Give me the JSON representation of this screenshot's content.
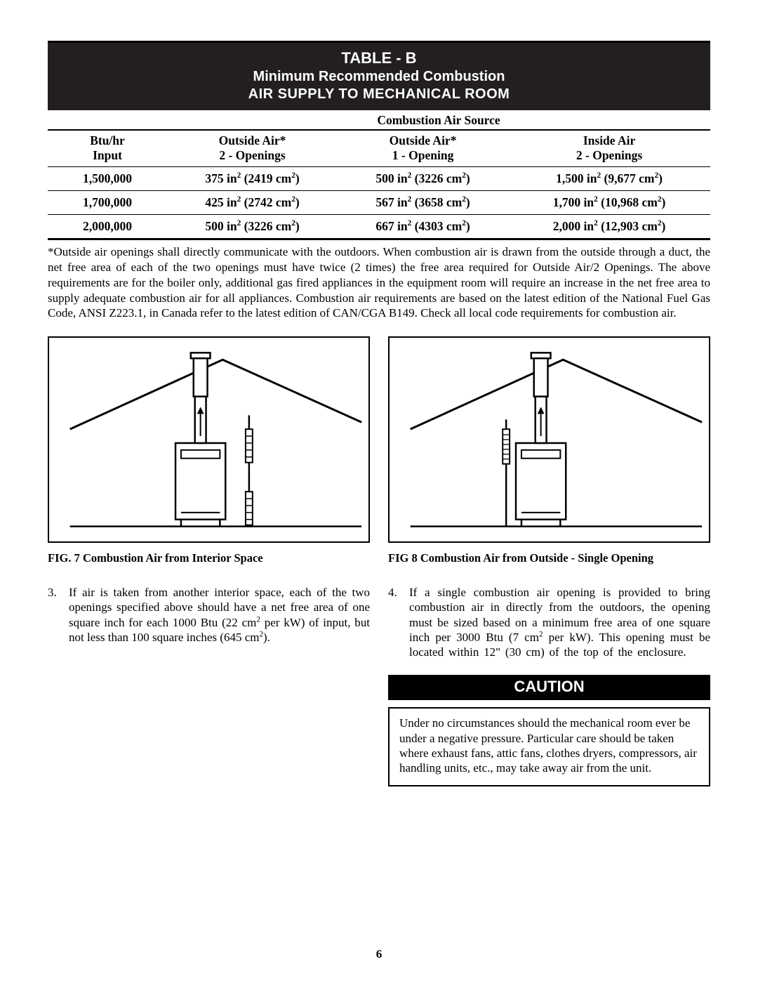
{
  "table": {
    "title_line1": "TABLE - B",
    "title_line2": "Minimum Recommended Combustion",
    "title_line3": "AIR SUPPLY TO MECHANICAL ROOM",
    "source_header": "Combustion Air Source",
    "columns": {
      "c1_l1": "Btu/hr",
      "c1_l2": "Input",
      "c2_l1": "Outside Air*",
      "c2_l2": "2 - Openings",
      "c3_l1": "Outside Air*",
      "c3_l2": "1 - Opening",
      "c4_l1": "Inside Air",
      "c4_l2": "2 - Openings"
    },
    "rows": [
      {
        "btu": "1,500,000",
        "c2_in": "375",
        "c2_cm": "2419",
        "c3_in": "500",
        "c3_cm": "3226",
        "c4_in": "1,500",
        "c4_cm": "9,677"
      },
      {
        "btu": "1,700,000",
        "c2_in": "425",
        "c2_cm": "2742",
        "c3_in": "567",
        "c3_cm": "3658",
        "c4_in": "1,700",
        "c4_cm": "10,968"
      },
      {
        "btu": "2,000,000",
        "c2_in": "500",
        "c2_cm": "3226",
        "c3_in": "667",
        "c3_cm": "4303",
        "c4_in": "2,000",
        "c4_cm": "12,903"
      }
    ]
  },
  "footnote": "*Outside air openings shall directly communicate with the outdoors.  When combustion air is drawn from the outside through a duct, the net free area of each of the two openings must have twice (2 times) the free area required for Outside Air/2 Openings. The above requirements are for the boiler only, additional gas fired appliances in the equipment room will require an increase in the net free area to supply adequate combustion air for all appliances. Combustion air requirements are based on the latest edition of the National Fuel Gas Code, ANSI Z223.1, in Canada refer  to the latest edition of CAN/CGA B149.  Check all local code requirements for combustion air.",
  "fig7": {
    "caption": "FIG.  7   Combustion Air from Interior Space"
  },
  "fig8": {
    "caption": "FIG 8   Combustion Air from Outside - Single Opening"
  },
  "para3": {
    "num": "3.",
    "text_prefix": "If air is taken from another interior space, each of the two openings specified above should have a net free area of one square inch for each 1000 Btu  (22 cm",
    "text_mid": " per kW) of input, but not less than 100 square inches (645 cm",
    "text_suffix": ")."
  },
  "para4": {
    "num": "4.",
    "text_prefix": "If a single combustion air opening is provided to bring combustion air in directly from the outdoors, the opening must be sized based on a minimum free area of one square inch per 3000 Btu (7 cm",
    "text_suffix": " per kW). This opening must be located within 12\" (30 cm) of the top of the enclosure."
  },
  "caution": {
    "title": "CAUTION",
    "body": "Under no circumstances should the mechanical room ever be under a negative pressure.  Particular care should be taken where exhaust fans, attic fans, clothes dryers, compressors, air handling units, etc., may take away air from the unit."
  },
  "page_number": "6",
  "colors": {
    "black": "#000000",
    "header_bg": "#231f20",
    "white": "#ffffff"
  }
}
